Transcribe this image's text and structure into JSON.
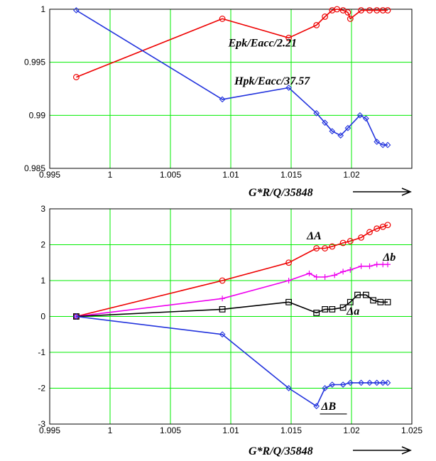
{
  "chart_data": [
    {
      "type": "line",
      "xlim": [
        0.995,
        1.025
      ],
      "ylim": [
        0.985,
        1.0
      ],
      "grid": true,
      "grid_color": "#00ee00",
      "x_ticks": [
        {
          "v": 0.995,
          "label": "0.995"
        },
        {
          "v": 1.0,
          "label": "1"
        },
        {
          "v": 1.005,
          "label": "1.005"
        },
        {
          "v": 1.01,
          "label": "1.01"
        },
        {
          "v": 1.015,
          "label": "1.015"
        },
        {
          "v": 1.02,
          "label": "1.02"
        }
      ],
      "y_ticks": [
        {
          "v": 0.985,
          "label": "0.985"
        },
        {
          "v": 0.99,
          "label": "0.99"
        },
        {
          "v": 0.995,
          "label": "0.995"
        },
        {
          "v": 1.0,
          "label": "1"
        }
      ],
      "xlabel": "G*R/Q/35848",
      "series": [
        {
          "name": "Epk/Eacc/2.21",
          "color": "#ee0000",
          "marker": "circle",
          "label_pos": [
            1.0098,
            0.9965
          ],
          "x": [
            0.9972,
            1.0093,
            1.0148,
            1.0171,
            1.0178,
            1.0184,
            1.0188,
            1.0193,
            1.0197,
            1.0199,
            1.0208,
            1.0215,
            1.0221,
            1.0226,
            1.023
          ],
          "y": [
            0.9936,
            0.9991,
            0.9973,
            0.9985,
            0.9993,
            0.9999,
            1.0,
            0.9999,
            0.9997,
            0.9991,
            0.9999,
            0.9999,
            0.9999,
            0.9999,
            0.9999
          ]
        },
        {
          "name": "Hpk/Eacc/37.57",
          "color": "#2233dd",
          "marker": "diamond",
          "label_pos": [
            1.0103,
            0.9929
          ],
          "x": [
            0.9972,
            1.0093,
            1.0148,
            1.0171,
            1.0178,
            1.0184,
            1.0191,
            1.0197,
            1.0207,
            1.0212,
            1.0221,
            1.0226,
            1.023
          ],
          "y": [
            0.9999,
            0.9915,
            0.9926,
            0.9902,
            0.9893,
            0.9885,
            0.9881,
            0.9888,
            0.99,
            0.9897,
            0.9875,
            0.9872,
            0.9872
          ]
        }
      ]
    },
    {
      "type": "line",
      "xlim": [
        0.995,
        1.025
      ],
      "ylim": [
        -3,
        3
      ],
      "grid": true,
      "grid_color": "#00ee00",
      "x_ticks": [
        {
          "v": 0.995,
          "label": "0.995"
        },
        {
          "v": 1.0,
          "label": "1"
        },
        {
          "v": 1.005,
          "label": "1.005"
        },
        {
          "v": 1.01,
          "label": "1.01"
        },
        {
          "v": 1.015,
          "label": "1.015"
        },
        {
          "v": 1.02,
          "label": "1.02"
        },
        {
          "v": 1.025,
          "label": "1.025"
        }
      ],
      "y_ticks": [
        {
          "v": -3,
          "label": "-3"
        },
        {
          "v": -2,
          "label": "-2"
        },
        {
          "v": -1,
          "label": "-1"
        },
        {
          "v": 0,
          "label": "0"
        },
        {
          "v": 1,
          "label": "1"
        },
        {
          "v": 2,
          "label": "2"
        },
        {
          "v": 3,
          "label": "3"
        }
      ],
      "xlabel": "G*R/Q/35848",
      "series": [
        {
          "name": "ΔA",
          "color": "#ee0000",
          "marker": "circle",
          "label_pos": [
            1.0163,
            2.15
          ],
          "x": [
            0.9972,
            1.0093,
            1.0148,
            1.0171,
            1.0178,
            1.0184,
            1.0193,
            1.0199,
            1.0208,
            1.0215,
            1.0221,
            1.0226,
            1.023
          ],
          "y": [
            0,
            1.0,
            1.5,
            1.9,
            1.9,
            1.95,
            2.05,
            2.1,
            2.2,
            2.35,
            2.45,
            2.5,
            2.55
          ]
        },
        {
          "name": "Δb",
          "color": "#ee00ee",
          "marker": "plus",
          "label_pos": [
            1.0226,
            1.55
          ],
          "x": [
            0.9972,
            1.0093,
            1.0148,
            1.0165,
            1.0171,
            1.0178,
            1.0186,
            1.0193,
            1.0199,
            1.0208,
            1.0215,
            1.0221,
            1.0226,
            1.023
          ],
          "y": [
            0,
            0.5,
            1.0,
            1.2,
            1.1,
            1.1,
            1.15,
            1.25,
            1.3,
            1.4,
            1.4,
            1.45,
            1.45,
            1.45
          ]
        },
        {
          "name": "Δa",
          "color": "#000000",
          "marker": "square",
          "label_pos": [
            1.0196,
            0.05
          ],
          "x": [
            0.9972,
            1.0093,
            1.0148,
            1.0171,
            1.0178,
            1.0184,
            1.0193,
            1.0199,
            1.0205,
            1.0212,
            1.0218,
            1.0224,
            1.023
          ],
          "y": [
            0,
            0.2,
            0.4,
            0.1,
            0.2,
            0.2,
            0.25,
            0.4,
            0.6,
            0.6,
            0.45,
            0.4,
            0.4
          ]
        },
        {
          "name": "ΔB",
          "color": "#2233dd",
          "marker": "diamond",
          "label_pos": [
            1.0175,
            -2.6
          ],
          "x": [
            0.9972,
            1.0093,
            1.0148,
            1.0171,
            1.0178,
            1.0184,
            1.0193,
            1.0199,
            1.0208,
            1.0215,
            1.0221,
            1.0226,
            1.023
          ],
          "y": [
            0,
            -0.5,
            -2.0,
            -2.5,
            -2.0,
            -1.9,
            -1.9,
            -1.85,
            -1.85,
            -1.85,
            -1.85,
            -1.85,
            -1.85
          ]
        }
      ]
    }
  ]
}
